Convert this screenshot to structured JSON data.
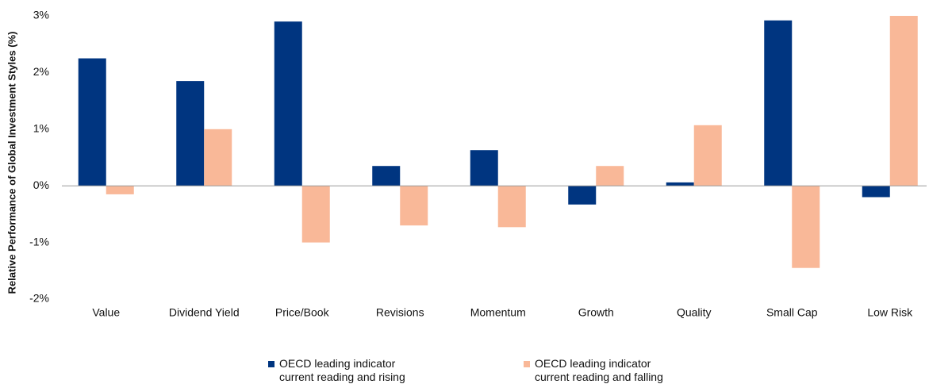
{
  "chart_data": {
    "type": "bar",
    "y_axis_label": "Relative Performance of Global Investment Styles (%)",
    "categories": [
      "Value",
      "Dividend Yield",
      "Price/Book",
      "Revisions",
      "Momentum",
      "Growth",
      "Quality",
      "Small Cap",
      "Low Risk"
    ],
    "series": [
      {
        "name": "OECD leading indicator current reading and rising",
        "color": "#003580",
        "values": [
          2.25,
          1.85,
          2.9,
          0.35,
          0.63,
          -0.33,
          0.06,
          2.92,
          -0.2
        ]
      },
      {
        "name": "OECD leading indicator current reading and falling",
        "color": "#f9b898",
        "values": [
          -0.15,
          1.0,
          -1.0,
          -0.7,
          -0.73,
          0.35,
          1.07,
          -1.45,
          3.0
        ]
      }
    ],
    "ylim": [
      -2,
      3
    ],
    "yticks": [
      {
        "value": -2,
        "label": "-2%"
      },
      {
        "value": -1,
        "label": "-1%"
      },
      {
        "value": 0,
        "label": "0%"
      },
      {
        "value": 1,
        "label": "1%"
      },
      {
        "value": 2,
        "label": "2%"
      },
      {
        "value": 3,
        "label": "3%"
      }
    ],
    "grid": false,
    "legend": "bottom"
  }
}
